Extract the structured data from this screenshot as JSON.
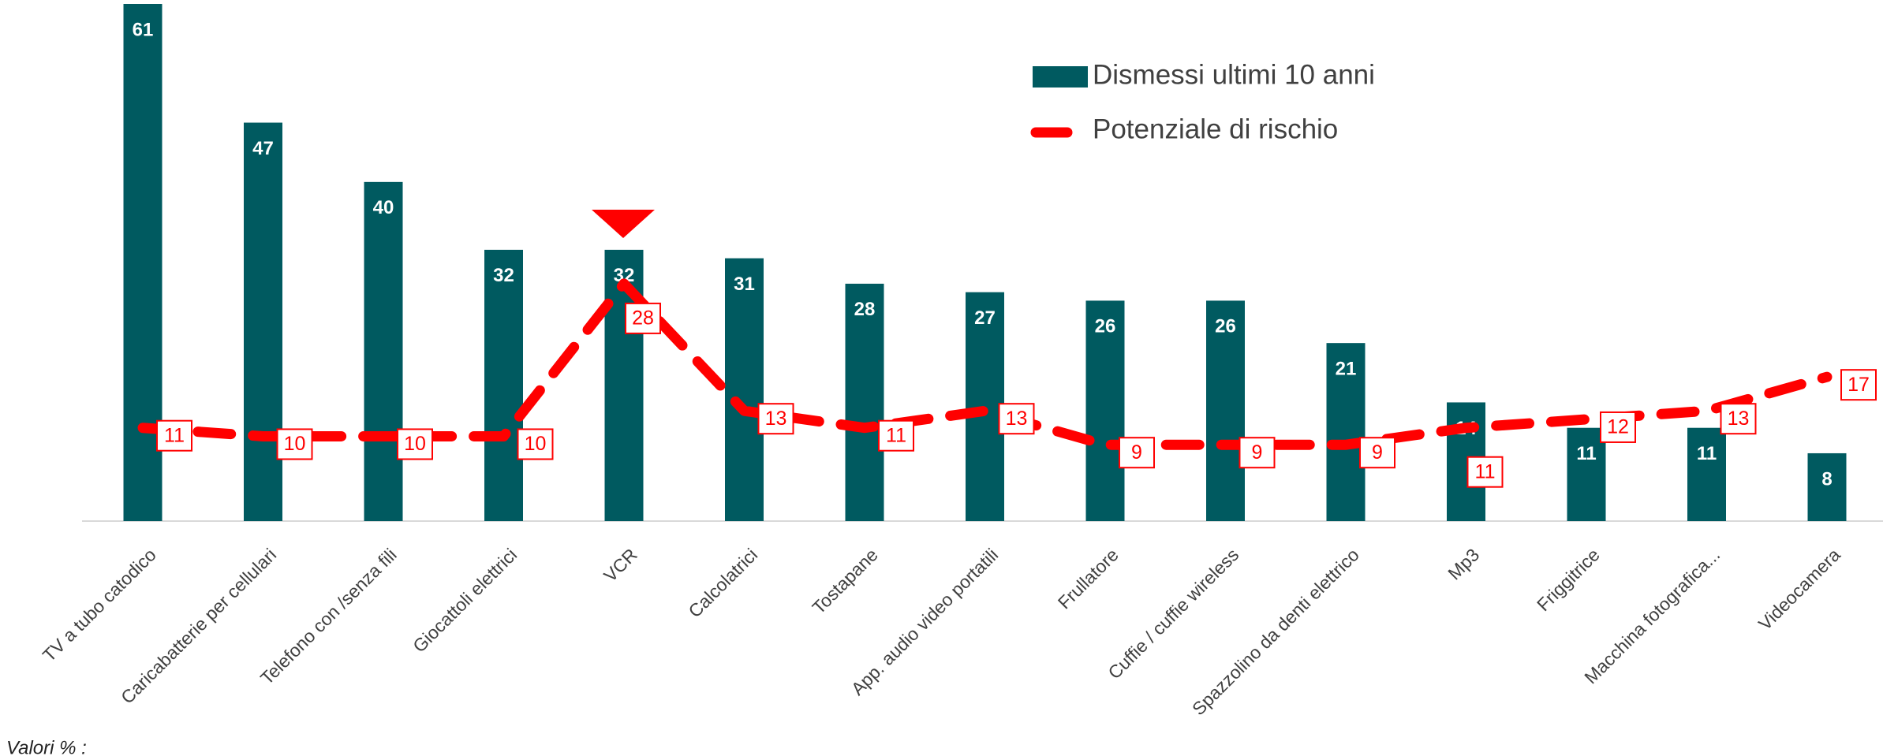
{
  "chart_data": {
    "type": "bar_line",
    "categories": [
      "TV a tubo catodico",
      "Caricabatterie per cellulari",
      "Telefono con /senza fili",
      "Giocattoli elettrici",
      "VCR",
      "Calcolatrici",
      "Tostapane",
      "App. audio video portatili",
      "Frullatore",
      "Cuffie / cuffie wireless",
      "Spazzolino da denti elettrico",
      "Mp3",
      "Friggitrice",
      "Macchina fotografica...",
      "Videocamera"
    ],
    "series": [
      {
        "name": "Dismessi ultimi 10 anni",
        "type": "bar",
        "color": "#005a60",
        "values": [
          61,
          47,
          40,
          32,
          32,
          31,
          28,
          27,
          26,
          26,
          21,
          14,
          11,
          11,
          8
        ]
      },
      {
        "name": "Potenziale di rischio",
        "type": "line",
        "color": "#ff0000",
        "values": [
          11,
          10,
          10,
          10,
          28,
          13,
          11,
          13,
          9,
          9,
          9,
          11,
          12,
          13,
          17
        ]
      }
    ],
    "footnote": "Valori % :"
  }
}
